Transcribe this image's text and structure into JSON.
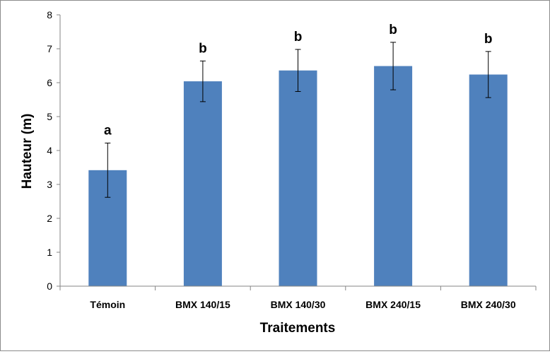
{
  "chart_data": {
    "type": "bar",
    "title": "",
    "xlabel": "Traitements",
    "ylabel": "Hauteur (m)",
    "ylim": [
      0,
      8
    ],
    "yticks": [
      0,
      1,
      2,
      3,
      4,
      5,
      6,
      7,
      8
    ],
    "categories": [
      "Témoin",
      "BMX 140/15",
      "BMX 140/30",
      "BMX 240/15",
      "BMX 240/30"
    ],
    "values": [
      3.42,
      6.04,
      6.36,
      6.49,
      6.24
    ],
    "errors": [
      0.8,
      0.6,
      0.62,
      0.7,
      0.68
    ],
    "significance_letters": [
      "a",
      "b",
      "b",
      "b",
      "b"
    ],
    "bar_color": "#4f81bd",
    "grid": false,
    "legend": "none"
  }
}
